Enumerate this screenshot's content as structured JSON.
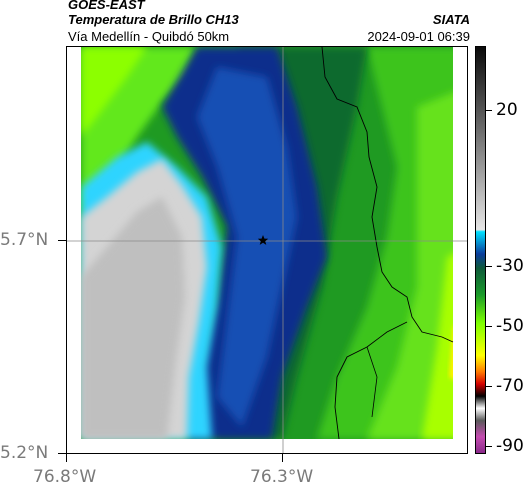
{
  "header": {
    "satellite": "GOES-EAST",
    "product": "Temperatura de Brillo CH13",
    "source": "SIATA",
    "region": "Vía Medellín - Quibdó 50km",
    "datetime": "2024-09-01 06:39"
  },
  "axes": {
    "y_ticks": [
      "5.7°N",
      "5.2°N"
    ],
    "x_ticks": [
      "76.8°W",
      "76.3°W"
    ]
  },
  "colorbar": {
    "labels": [
      "20",
      "-30",
      "-50",
      "-70",
      "-90"
    ],
    "min": -90,
    "max": 40,
    "colors": {
      "warm": "#2b2b2b",
      "grey": "#c8c8c8",
      "cyan": "#00c8ff",
      "blue": "#0a3c9c",
      "teal": "#1e6e6e",
      "green": "#1a9a2a",
      "lime": "#7dff00",
      "yellow": "#ffff00",
      "orange": "#ff7a00",
      "red": "#d40000",
      "black": "#000000",
      "magenta": "#c44cb0"
    }
  },
  "map": {
    "marker": "star",
    "map_colors": {
      "cold_top": "#d4d4d4",
      "cyan_edge": "#2fd4ff",
      "deep_blue": "#0b2f8c",
      "mid_blue": "#1550b4",
      "dark_green": "#0f6a2e",
      "green": "#1f9a22",
      "bright_green": "#4fd61e",
      "lime": "#93ff00",
      "yellow": "#fff200"
    }
  }
}
